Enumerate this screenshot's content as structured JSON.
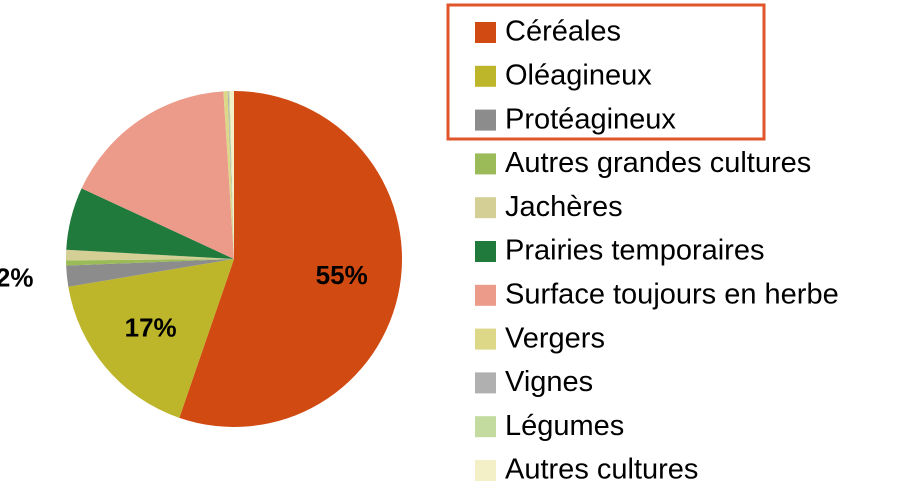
{
  "chart_data": {
    "type": "pie",
    "categories": [
      "Céréales",
      "Oléagineux",
      "Protéagineux",
      "Autres grandes cultures",
      "Jachères",
      "Prairies temporaires",
      "Surface toujours en herbe",
      "Vergers",
      "Vignes",
      "Légumes",
      "Autres cultures"
    ],
    "values": [
      55,
      17,
      2,
      0.5,
      1,
      6,
      17,
      0.4,
      0.1,
      0.1,
      0.4
    ],
    "value_labels": [
      "55%",
      "17%",
      "2%",
      null,
      null,
      null,
      null,
      null,
      null,
      null,
      null
    ],
    "colors": [
      "#d04a12",
      "#bdb52a",
      "#8c8c8c",
      "#9bbb59",
      "#d4cf95",
      "#1f7a3c",
      "#ec9a8a",
      "#dcd888",
      "#b0b0b0",
      "#c4dba0",
      "#f3efc6"
    ],
    "legend": "right"
  }
}
